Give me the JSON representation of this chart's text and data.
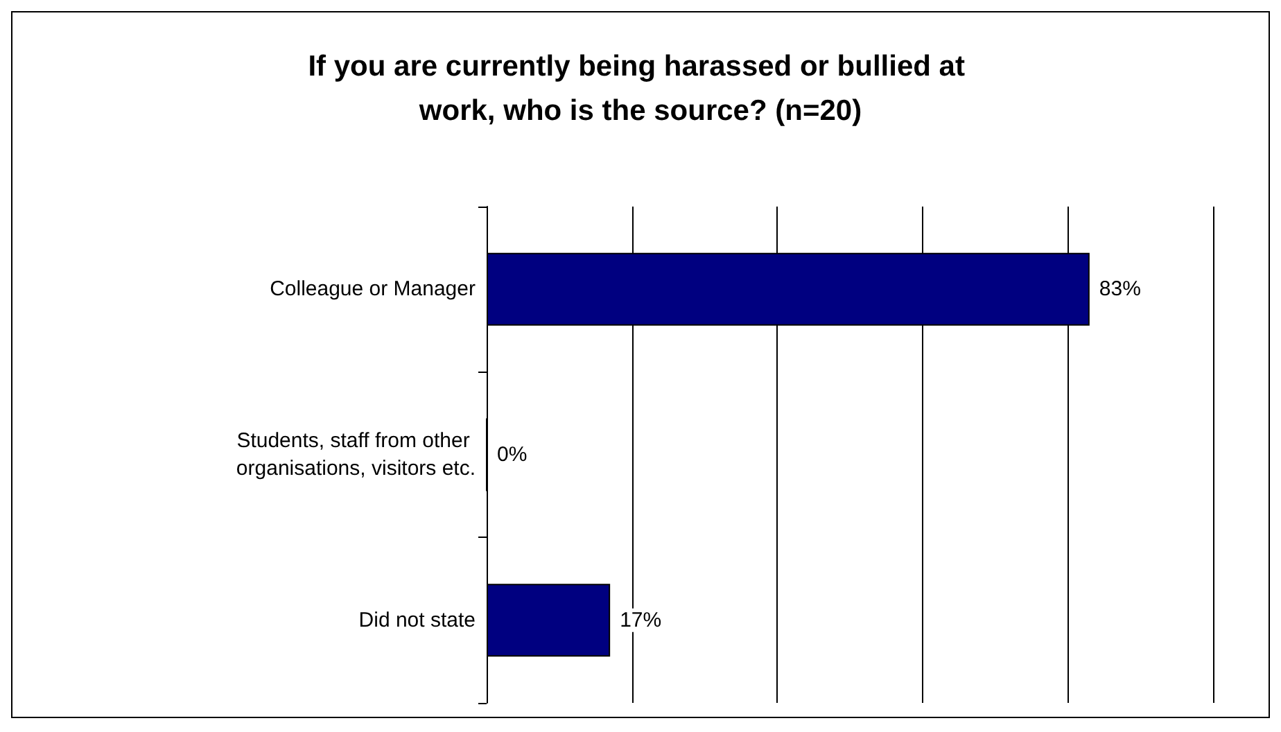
{
  "chart_data": {
    "type": "bar",
    "orientation": "horizontal",
    "title": "If you are currently being harassed or bullied at work, who is the source? (n=20)",
    "categories": [
      "Colleague or Manager",
      "Students, staff from other organisations, visitors etc.",
      "Did not state"
    ],
    "values": [
      83,
      0,
      17
    ],
    "color": "#000080",
    "data_labels": true,
    "value_labels": [
      "83%",
      "0%",
      "17%"
    ],
    "xlim": [
      0,
      100
    ],
    "xticks": [
      {
        "value": 0,
        "label": null
      },
      {
        "value": 20,
        "label": null
      },
      {
        "value": 40,
        "label": null
      },
      {
        "value": 60,
        "label": null
      },
      {
        "value": 80,
        "label": null
      },
      {
        "value": 100,
        "label": null
      }
    ],
    "grid": "x",
    "tick_labels": "y"
  }
}
